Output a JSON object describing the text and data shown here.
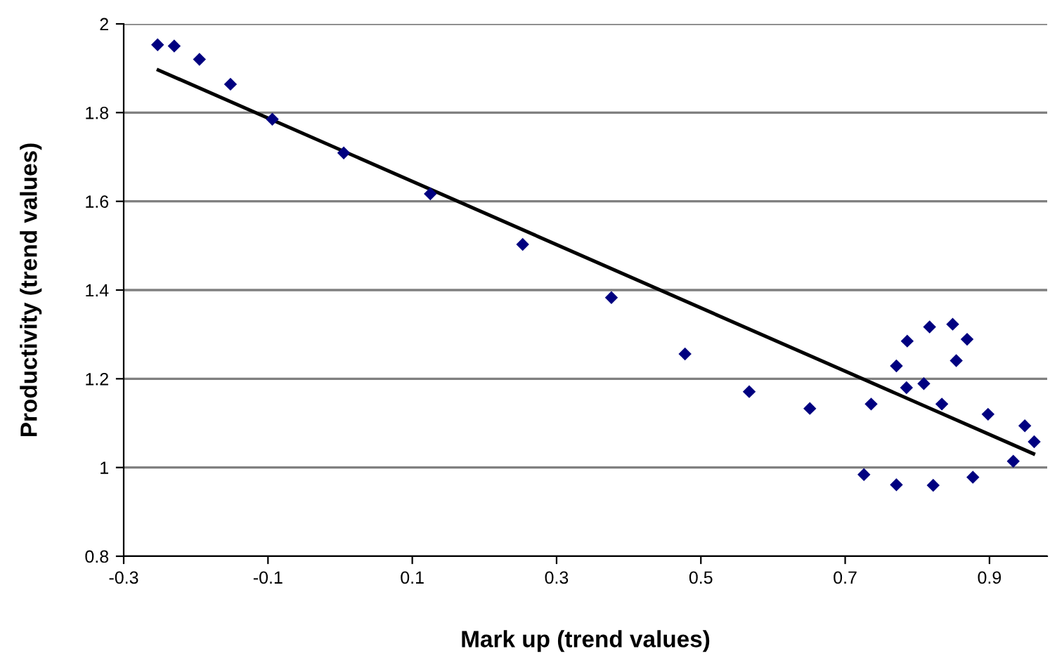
{
  "chart_data": {
    "type": "scatter",
    "xlabel": "Mark up (trend values)",
    "ylabel": "Productivity (trend values)",
    "xlim": [
      -0.3,
      0.98
    ],
    "xticks": [
      -0.3,
      -0.1,
      0.1,
      0.3,
      0.5,
      0.7,
      0.9
    ],
    "ylim": [
      0.8,
      2
    ],
    "yticks": [
      0.8,
      1,
      1.2,
      1.4,
      1.6,
      1.8,
      2
    ],
    "grid": "y",
    "series": [
      {
        "marker": "diamond",
        "color": "#000080",
        "x": [
          -0.253,
          -0.23,
          -0.195,
          -0.152,
          -0.094,
          0.005,
          0.125,
          0.253,
          0.376,
          0.478,
          0.567,
          0.651,
          0.726,
          0.736,
          0.771,
          0.771,
          0.786,
          0.785,
          0.809,
          0.817,
          0.822,
          0.834,
          0.849,
          0.854,
          0.869,
          0.877,
          0.898,
          0.933,
          0.949,
          0.962
        ],
        "values": [
          1.953,
          1.95,
          1.92,
          1.864,
          1.785,
          1.709,
          1.617,
          1.503,
          1.383,
          1.256,
          1.171,
          1.133,
          0.984,
          1.143,
          1.229,
          0.961,
          1.285,
          1.18,
          1.189,
          1.317,
          0.96,
          1.143,
          1.323,
          1.241,
          1.289,
          0.978,
          1.12,
          1.014,
          1.094,
          1.058
        ]
      },
      {
        "type": "line",
        "color": "#000000",
        "x": [
          -0.252,
          0.961
        ],
        "values": [
          1.896,
          1.031
        ]
      }
    ]
  }
}
